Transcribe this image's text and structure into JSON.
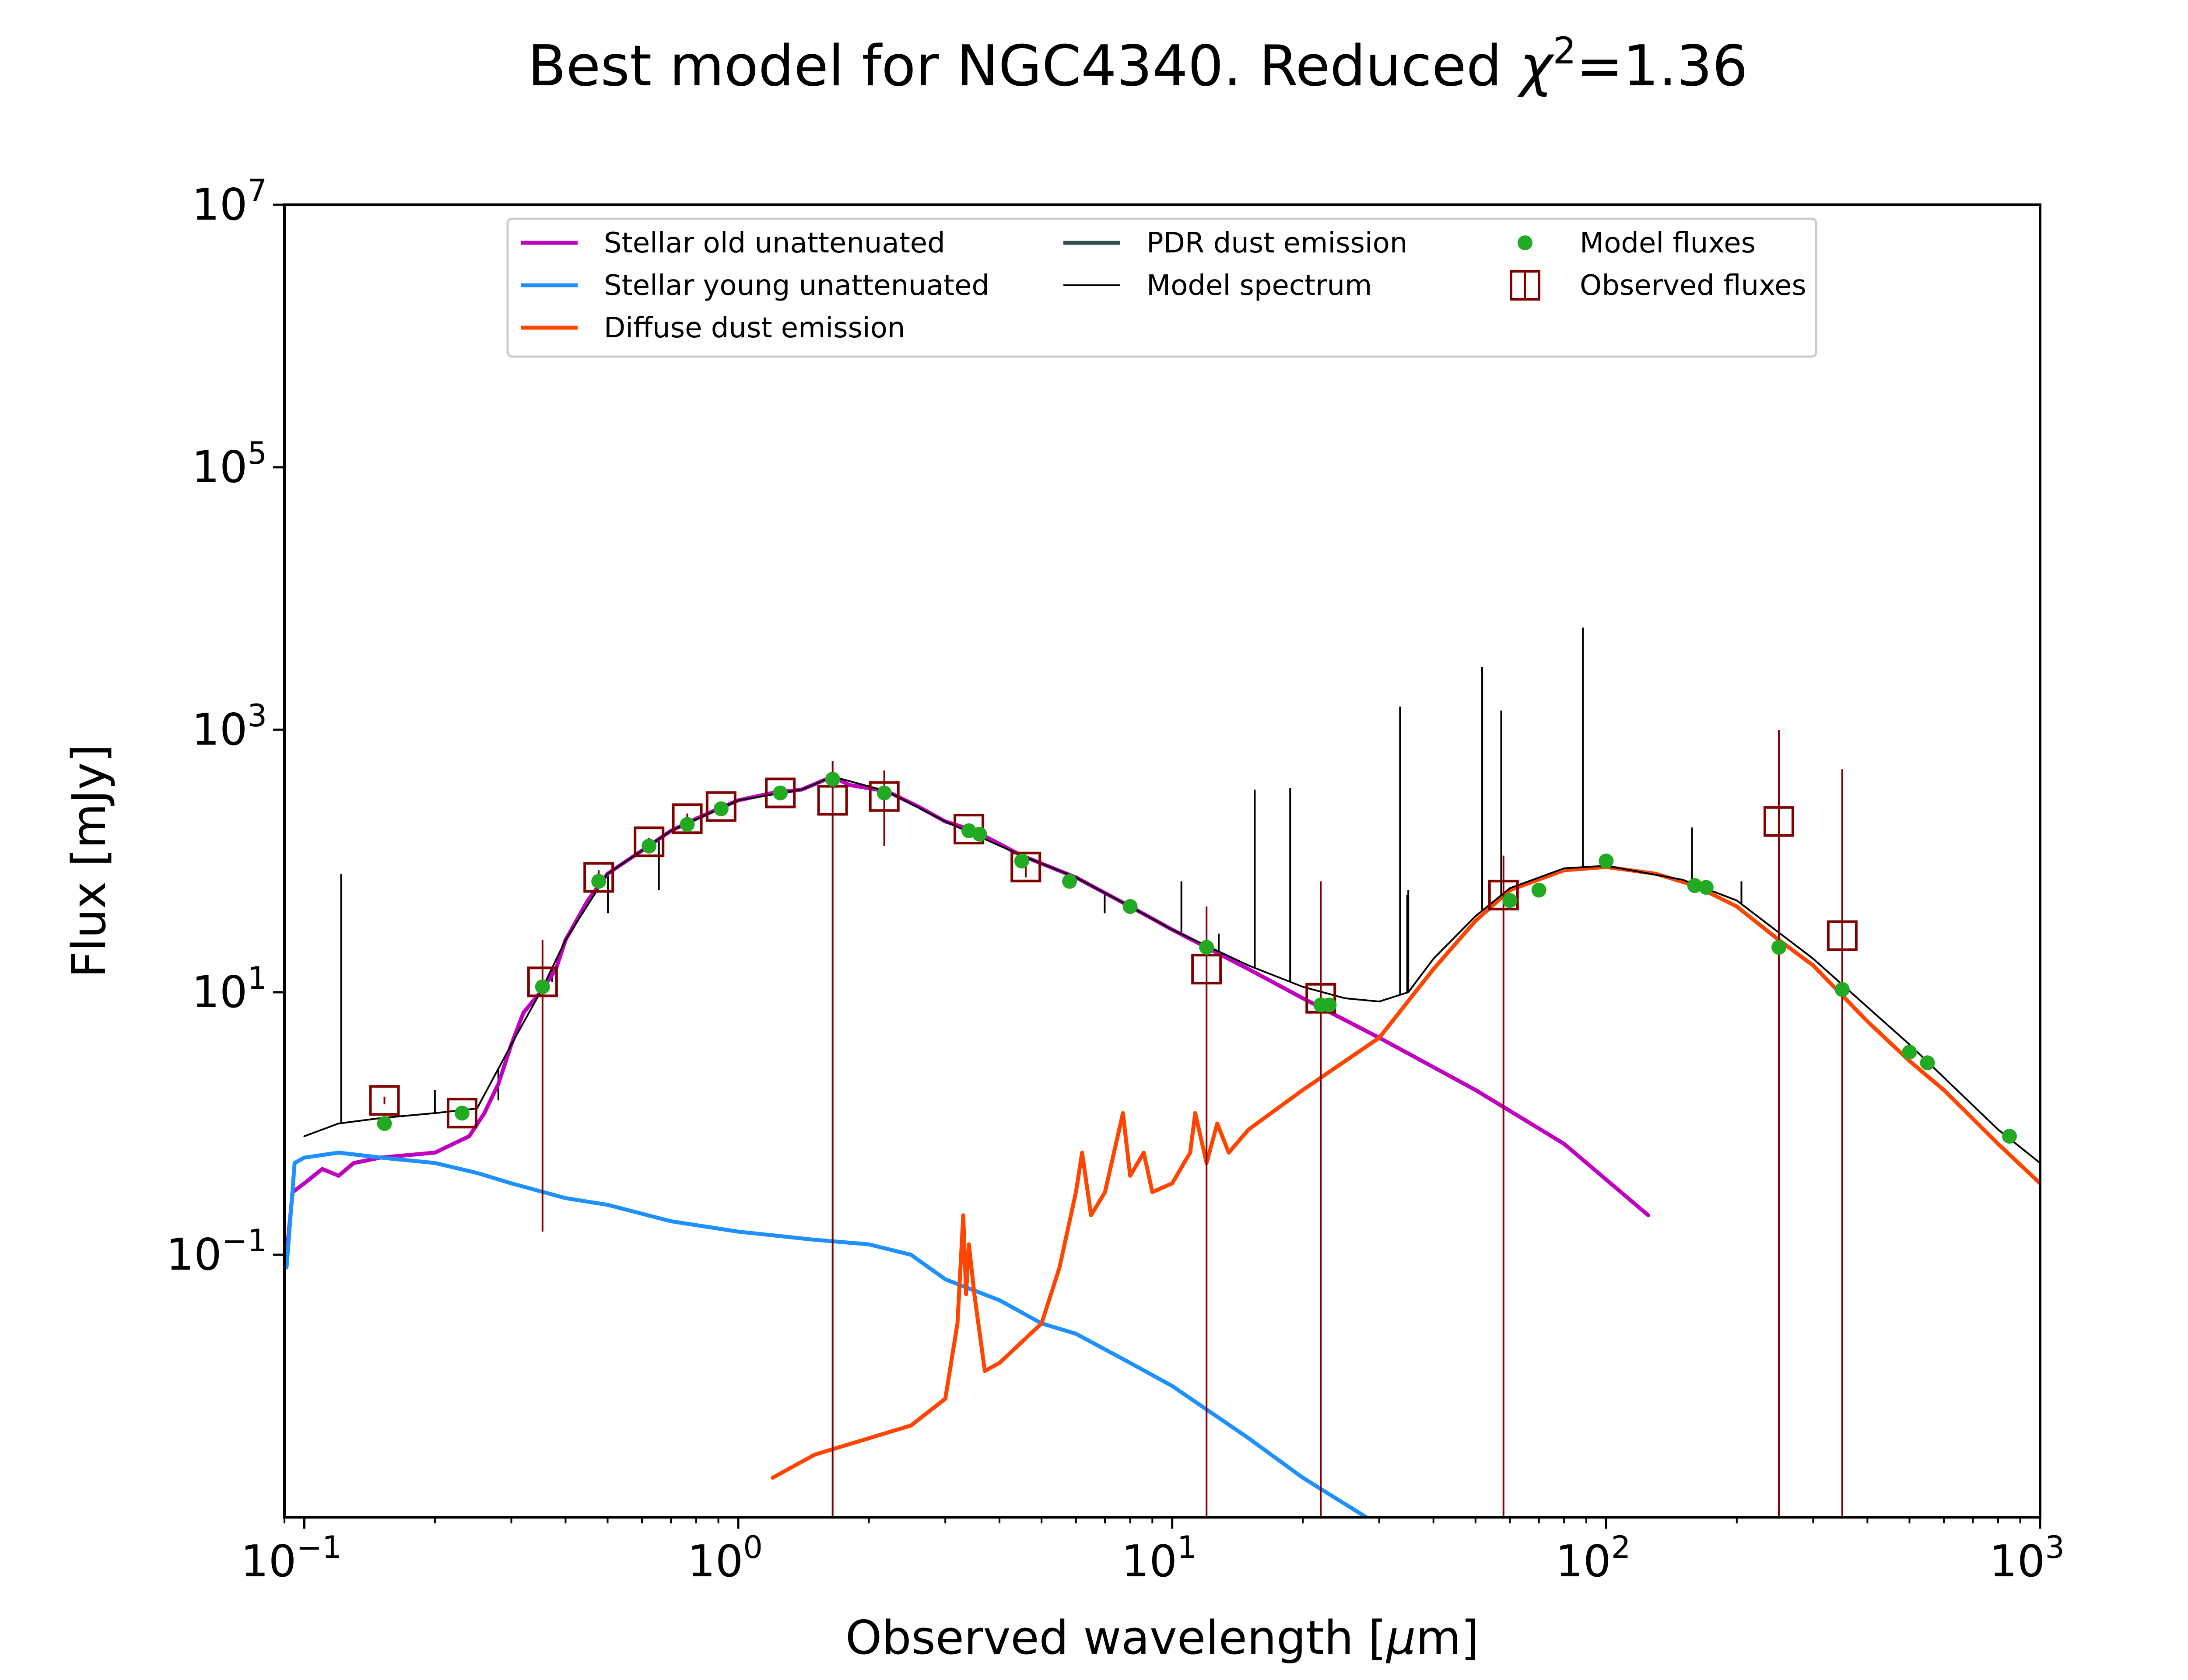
{
  "chart_data": {
    "type": "line",
    "title_main": "Best model for NGC4340. Reduced ",
    "title_chi": "χ",
    "title_sup": "2",
    "title_value": "=1.36",
    "xlabel_main": "Observed wavelength [",
    "xlabel_mu": "μ",
    "xlabel_end": "m]",
    "ylabel": "Flux [mJy]",
    "x_scale": "log",
    "y_scale": "log",
    "xlim": [
      0.09,
      1000
    ],
    "ylim": [
      0.001,
      10000000
    ],
    "x_ticks": [
      {
        "base": "10",
        "exp": "−1",
        "value": 0.1
      },
      {
        "base": "10",
        "exp": "0",
        "value": 1
      },
      {
        "base": "10",
        "exp": "1",
        "value": 10
      },
      {
        "base": "10",
        "exp": "2",
        "value": 100
      },
      {
        "base": "10",
        "exp": "3",
        "value": 1000
      }
    ],
    "y_ticks": [
      {
        "base": "10",
        "exp": "−1",
        "value": 0.1
      },
      {
        "base": "10",
        "exp": "1",
        "value": 10
      },
      {
        "base": "10",
        "exp": "3",
        "value": 1000
      },
      {
        "base": "10",
        "exp": "5",
        "value": 100000
      },
      {
        "base": "10",
        "exp": "7",
        "value": 10000000
      }
    ],
    "legend_placement": "upper-center",
    "legend": [
      {
        "label": "Stellar old unattenuated",
        "kind": "line",
        "color": "#bf00bf"
      },
      {
        "label": "Stellar young unattenuated",
        "kind": "line",
        "color": "#1e90ff"
      },
      {
        "label": "Diffuse dust emission",
        "kind": "line",
        "color": "#ff4500"
      },
      {
        "label": "PDR dust emission",
        "kind": "line",
        "color": "#2f4f4f"
      },
      {
        "label": "Model spectrum",
        "kind": "thinline",
        "color": "#000000"
      },
      {
        "label": "Model fluxes",
        "kind": "dot",
        "color": "#22aa22"
      },
      {
        "label": "Observed fluxes",
        "kind": "square",
        "color": "#800000"
      }
    ],
    "series": [
      {
        "name": "Stellar old unattenuated",
        "color": "#bf00bf",
        "points": [
          [
            0.091,
            0.1
          ],
          [
            0.094,
            0.3
          ],
          [
            0.1,
            0.35
          ],
          [
            0.11,
            0.45
          ],
          [
            0.12,
            0.4
          ],
          [
            0.13,
            0.5
          ],
          [
            0.15,
            0.55
          ],
          [
            0.2,
            0.6
          ],
          [
            0.24,
            0.8
          ],
          [
            0.26,
            1.2
          ],
          [
            0.28,
            2
          ],
          [
            0.3,
            4
          ],
          [
            0.32,
            7
          ],
          [
            0.35,
            10
          ],
          [
            0.38,
            15
          ],
          [
            0.4,
            25
          ],
          [
            0.45,
            50
          ],
          [
            0.5,
            80
          ],
          [
            0.6,
            120
          ],
          [
            0.7,
            170
          ],
          [
            0.8,
            210
          ],
          [
            0.9,
            250
          ],
          [
            1.0,
            290
          ],
          [
            1.2,
            330
          ],
          [
            1.4,
            350
          ],
          [
            1.65,
            440
          ],
          [
            1.8,
            380
          ],
          [
            2.2,
            340
          ],
          [
            2.6,
            260
          ],
          [
            3.0,
            200
          ],
          [
            3.5,
            170
          ],
          [
            4.5,
            110
          ],
          [
            6,
            75
          ],
          [
            8,
            45
          ],
          [
            10,
            30
          ],
          [
            15,
            15
          ],
          [
            20,
            9
          ],
          [
            30,
            4.5
          ],
          [
            50,
            1.8
          ],
          [
            80,
            0.7
          ],
          [
            125,
            0.2
          ]
        ]
      },
      {
        "name": "Stellar young unattenuated",
        "color": "#1e90ff",
        "points": [
          [
            0.091,
            0.08
          ],
          [
            0.095,
            0.5
          ],
          [
            0.1,
            0.55
          ],
          [
            0.12,
            0.6
          ],
          [
            0.15,
            0.55
          ],
          [
            0.2,
            0.5
          ],
          [
            0.25,
            0.42
          ],
          [
            0.3,
            0.35
          ],
          [
            0.4,
            0.27
          ],
          [
            0.5,
            0.24
          ],
          [
            0.7,
            0.18
          ],
          [
            1.0,
            0.15
          ],
          [
            1.5,
            0.13
          ],
          [
            2.0,
            0.12
          ],
          [
            2.5,
            0.1
          ],
          [
            3.0,
            0.065
          ],
          [
            4.0,
            0.045
          ],
          [
            5.0,
            0.03
          ],
          [
            6.0,
            0.025
          ],
          [
            8.0,
            0.015
          ],
          [
            10.0,
            0.01
          ],
          [
            15.0,
            0.004
          ],
          [
            20.0,
            0.002
          ],
          [
            28.0,
            0.001
          ]
        ]
      },
      {
        "name": "Diffuse dust emission",
        "color": "#ff4500",
        "points": [
          [
            1.2,
            0.002
          ],
          [
            1.5,
            0.003
          ],
          [
            2.0,
            0.004
          ],
          [
            2.5,
            0.005
          ],
          [
            3.0,
            0.008
          ],
          [
            3.2,
            0.03
          ],
          [
            3.3,
            0.2
          ],
          [
            3.35,
            0.05
          ],
          [
            3.4,
            0.12
          ],
          [
            3.5,
            0.05
          ],
          [
            3.7,
            0.013
          ],
          [
            4.0,
            0.015
          ],
          [
            5.0,
            0.03
          ],
          [
            5.5,
            0.08
          ],
          [
            6.0,
            0.3
          ],
          [
            6.2,
            0.6
          ],
          [
            6.5,
            0.2
          ],
          [
            7.0,
            0.3
          ],
          [
            7.7,
            1.2
          ],
          [
            8.0,
            0.4
          ],
          [
            8.6,
            0.6
          ],
          [
            9.0,
            0.3
          ],
          [
            10.0,
            0.35
          ],
          [
            11.0,
            0.6
          ],
          [
            11.3,
            1.2
          ],
          [
            12.0,
            0.5
          ],
          [
            12.7,
            1.0
          ],
          [
            13.5,
            0.6
          ],
          [
            15.0,
            0.9
          ],
          [
            20.0,
            1.8
          ],
          [
            30.0,
            4.5
          ],
          [
            40.0,
            15
          ],
          [
            50.0,
            35
          ],
          [
            60.0,
            60
          ],
          [
            80.0,
            85
          ],
          [
            100.0,
            90
          ],
          [
            130.0,
            80
          ],
          [
            160.0,
            65
          ],
          [
            200.0,
            45
          ],
          [
            250.0,
            25
          ],
          [
            300.0,
            16
          ],
          [
            400.0,
            6
          ],
          [
            500.0,
            3
          ],
          [
            600.0,
            1.8
          ],
          [
            800.0,
            0.7
          ],
          [
            1000.0,
            0.35
          ]
        ]
      },
      {
        "name": "Model spectrum",
        "color": "#000000",
        "points": [
          [
            0.1,
            0.8
          ],
          [
            0.12,
            1.0
          ],
          [
            0.15,
            1.1
          ],
          [
            0.2,
            1.2
          ],
          [
            0.25,
            1.3
          ],
          [
            0.3,
            4
          ],
          [
            0.35,
            10
          ],
          [
            0.4,
            25
          ],
          [
            0.5,
            80
          ],
          [
            0.7,
            170
          ],
          [
            1.0,
            290
          ],
          [
            1.4,
            350
          ],
          [
            1.65,
            440
          ],
          [
            2.2,
            340
          ],
          [
            3.0,
            200
          ],
          [
            4.5,
            110
          ],
          [
            6,
            75
          ],
          [
            8,
            45
          ],
          [
            10,
            30
          ],
          [
            15,
            16
          ],
          [
            20,
            11
          ],
          [
            25,
            9
          ],
          [
            30,
            8.5
          ],
          [
            35,
            10
          ],
          [
            40,
            18
          ],
          [
            50,
            38
          ],
          [
            60,
            62
          ],
          [
            80,
            88
          ],
          [
            100,
            92
          ],
          [
            150,
            72
          ],
          [
            200,
            50
          ],
          [
            300,
            18
          ],
          [
            500,
            4
          ],
          [
            800,
            0.9
          ],
          [
            1000,
            0.5
          ]
        ]
      }
    ],
    "emission_lines": [
      [
        0.1216,
        80
      ],
      [
        0.2,
        1.8
      ],
      [
        0.28,
        1.5
      ],
      [
        0.3727,
        12
      ],
      [
        0.5007,
        40
      ],
      [
        0.6563,
        60
      ],
      [
        6.99,
        40
      ],
      [
        10.5,
        70
      ],
      [
        12.8,
        28
      ],
      [
        15.5,
        350
      ],
      [
        18.7,
        360
      ],
      [
        33.5,
        1500
      ],
      [
        34.8,
        55
      ],
      [
        35,
        60
      ],
      [
        51.8,
        3000
      ],
      [
        57.3,
        1400
      ],
      [
        88.4,
        6000
      ],
      [
        157.7,
        180
      ],
      [
        205,
        70
      ]
    ],
    "model_fluxes": [
      [
        0.153,
        1.0
      ],
      [
        0.231,
        1.2
      ],
      [
        0.354,
        11
      ],
      [
        0.477,
        70
      ],
      [
        0.623,
        130
      ],
      [
        0.763,
        190
      ],
      [
        0.913,
        250
      ],
      [
        1.25,
        330
      ],
      [
        1.65,
        420
      ],
      [
        2.17,
        330
      ],
      [
        3.4,
        170
      ],
      [
        3.6,
        160
      ],
      [
        4.5,
        100
      ],
      [
        5.8,
        70
      ],
      [
        8.0,
        45
      ],
      [
        12,
        22
      ],
      [
        22,
        8
      ],
      [
        23,
        8
      ],
      [
        60,
        50
      ],
      [
        70,
        60
      ],
      [
        100,
        100
      ],
      [
        160,
        65
      ],
      [
        170,
        63
      ],
      [
        250,
        22
      ],
      [
        350,
        10.5
      ],
      [
        500,
        3.5
      ],
      [
        550,
        2.9
      ],
      [
        850,
        0.8
      ]
    ],
    "observed_fluxes": [
      {
        "x": 0.153,
        "y": 1.5,
        "ylo": 1.4,
        "yhi": 1.6
      },
      {
        "x": 0.231,
        "y": 1.2,
        "ylo": 1.1,
        "yhi": 1.3
      },
      {
        "x": 0.354,
        "y": 12,
        "ylo": 0.15,
        "yhi": 25
      },
      {
        "x": 0.477,
        "y": 75,
        "ylo": 65,
        "yhi": 85
      },
      {
        "x": 0.623,
        "y": 140,
        "ylo": 130,
        "yhi": 150
      },
      {
        "x": 0.763,
        "y": 210,
        "ylo": 190,
        "yhi": 230
      },
      {
        "x": 0.913,
        "y": 260,
        "ylo": 240,
        "yhi": 280
      },
      {
        "x": 1.25,
        "y": 330,
        "ylo": 310,
        "yhi": 350
      },
      {
        "x": 1.65,
        "y": 290,
        "ylo": 0.001,
        "yhi": 580
      },
      {
        "x": 2.17,
        "y": 310,
        "ylo": 130,
        "yhi": 490
      },
      {
        "x": 3.4,
        "y": 175,
        "ylo": 165,
        "yhi": 185
      },
      {
        "x": 4.6,
        "y": 90,
        "ylo": 75,
        "yhi": 105
      },
      {
        "x": 12,
        "y": 15,
        "ylo": 0.001,
        "yhi": 45
      },
      {
        "x": 22,
        "y": 9,
        "ylo": 0.001,
        "yhi": 70
      },
      {
        "x": 58,
        "y": 55,
        "ylo": 0.001,
        "yhi": 110
      },
      {
        "x": 250,
        "y": 200,
        "ylo": 0.001,
        "yhi": 1000
      },
      {
        "x": 350,
        "y": 27,
        "ylo": 0.001,
        "yhi": 500
      }
    ]
  }
}
